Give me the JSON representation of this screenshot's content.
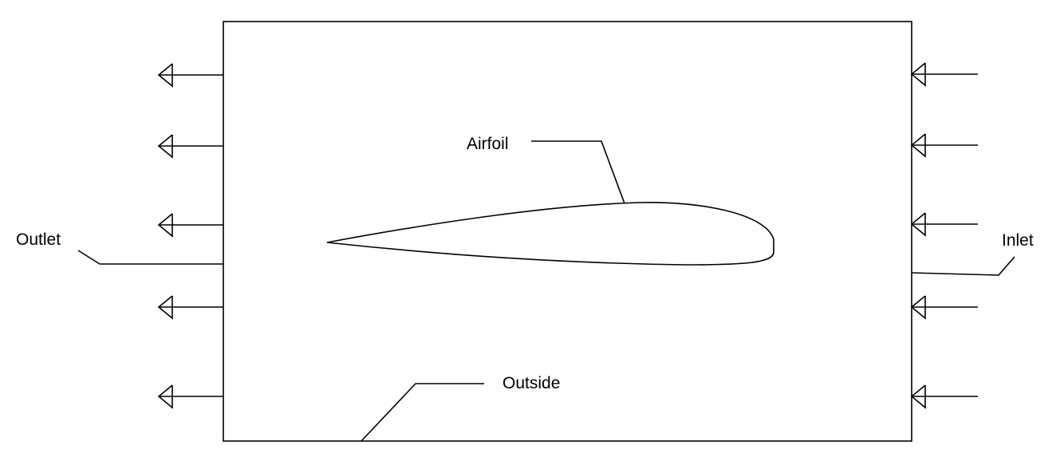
{
  "labels": {
    "airfoil": "Airfoil",
    "outlet": "Outlet",
    "inlet": "Inlet",
    "outside": "Outside"
  },
  "colors": {
    "stroke": "#000000",
    "background": "#ffffff"
  }
}
